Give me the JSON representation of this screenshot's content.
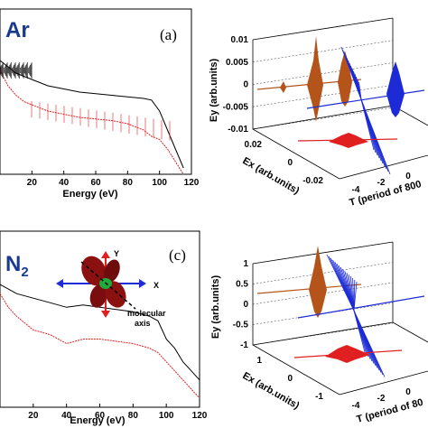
{
  "colors": {
    "black_curve": "#000000",
    "red_curve": "#e02020",
    "orange_trace": "#b5541a",
    "blue_trace": "#1c2bd6",
    "red_trace": "#e02020",
    "label_blue": "#1a3a8f",
    "molecule_red": "#8b1010",
    "molecule_green": "#1faa3a"
  },
  "chart_data": [
    {
      "type": "line",
      "panel_tag": "(a)",
      "species_label": "Ar",
      "xlabel": "Energy (eV)",
      "ylabel": "",
      "xlim": [
        0,
        120
      ],
      "x_ticks": [
        "20",
        "40",
        "60",
        "80",
        "100",
        "120"
      ],
      "y_ticks": [],
      "series": [
        {
          "values_x": [
            0,
            5,
            10,
            15,
            20,
            30,
            40,
            50,
            60,
            70,
            80,
            90,
            95,
            100,
            105,
            110,
            115
          ],
          "values_y": [
            -1.0,
            -1.2,
            -1.4,
            -1.5,
            -1.6,
            -1.8,
            -1.9,
            -2.0,
            -2.05,
            -2.1,
            -2.15,
            -2.2,
            -2.25,
            -2.6,
            -3.2,
            -3.8,
            -4.4
          ]
        },
        {
          "values_x": [
            0,
            5,
            10,
            15,
            20,
            30,
            40,
            50,
            60,
            70,
            80,
            90,
            95,
            100,
            105,
            110,
            115
          ],
          "values_y": [
            -1.3,
            -1.8,
            -2.1,
            -2.3,
            -2.4,
            -2.6,
            -2.7,
            -2.8,
            -2.85,
            -2.9,
            -3.0,
            -3.2,
            -3.4,
            -3.5,
            -3.8,
            -4.2,
            -4.6
          ]
        }
      ]
    },
    {
      "type": "line",
      "panel_tag": "",
      "species_label": "",
      "xlabel": "T (period of 800",
      "ylabel": "Ey (arb.units)",
      "zlabel": "Ex (arb.units)",
      "y_ticks": [
        "0.01",
        "0.005",
        "0",
        "-0.005",
        "-0.01"
      ],
      "z_ticks": [
        "0.02",
        "0",
        "-0.02"
      ],
      "x_ticks": [
        "-4",
        "-2",
        "0"
      ]
    },
    {
      "type": "line",
      "panel_tag": "(c)",
      "species_label": "N2",
      "species_base": "N",
      "species_sub": "2",
      "xlabel": "Energy (eV)",
      "ylabel": "",
      "xlim": [
        0,
        120
      ],
      "x_ticks": [
        "20",
        "40",
        "60",
        "80",
        "100",
        "120"
      ],
      "y_ticks": [],
      "axes_letters": {
        "y": "Y",
        "x": "X"
      },
      "molecule_label": [
        "molecular",
        "axis"
      ],
      "series": [
        {
          "values_x": [
            0,
            5,
            10,
            20,
            30,
            40,
            50,
            60,
            70,
            80,
            90,
            95,
            100,
            105,
            110,
            115,
            120
          ],
          "values_y": [
            -1.1,
            -1.2,
            -1.3,
            -1.4,
            -1.5,
            -1.6,
            -1.55,
            -1.6,
            -1.65,
            -1.7,
            -1.8,
            -1.9,
            -2.3,
            -2.5,
            -2.8,
            -3.0,
            -3.2
          ]
        },
        {
          "values_x": [
            0,
            5,
            10,
            20,
            30,
            40,
            50,
            60,
            70,
            80,
            90,
            95,
            100,
            105,
            110,
            115,
            120
          ],
          "values_y": [
            -1.3,
            -1.6,
            -1.8,
            -2.1,
            -2.2,
            -2.4,
            -2.3,
            -2.3,
            -2.35,
            -2.4,
            -2.5,
            -2.6,
            -2.8,
            -3.0,
            -3.2,
            -3.4,
            -3.6
          ]
        }
      ]
    },
    {
      "type": "line",
      "panel_tag": "",
      "species_label": "",
      "xlabel": "T (period of 80",
      "ylabel": "Ey (arb.units)",
      "zlabel": "Ex (arb.units)",
      "y_ticks": [
        "1",
        "0.5",
        "0",
        "-0.5",
        "-1"
      ],
      "z_ticks": [
        "1",
        "0",
        "-1"
      ],
      "x_ticks": [
        "-4",
        "-2",
        "0"
      ]
    }
  ]
}
